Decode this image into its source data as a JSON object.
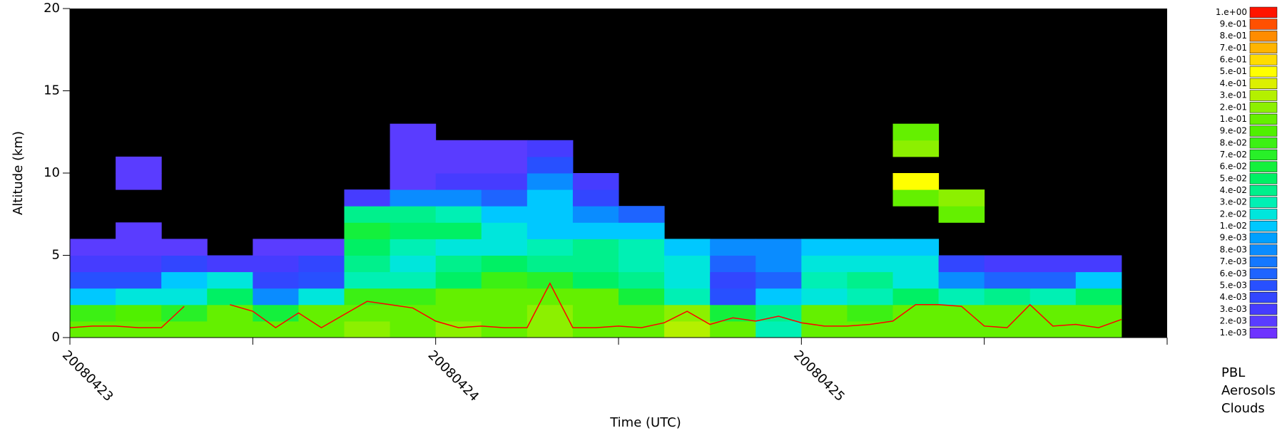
{
  "chart_data": {
    "type": "heatmap",
    "xlabel": "Time (UTC)",
    "ylabel": "Altitude (km)",
    "xlim": [
      0,
      72
    ],
    "ylim": [
      0,
      20
    ],
    "xticks": [
      {
        "value": 0,
        "label": "20080423"
      },
      {
        "value": 24,
        "label": "20080424"
      },
      {
        "value": 48,
        "label": "20080425"
      }
    ],
    "xminor_ticks": [
      12,
      36,
      60,
      72
    ],
    "yticks": [
      0,
      5,
      10,
      15,
      20
    ],
    "xbins": [
      0,
      3,
      6,
      9,
      12,
      15,
      18,
      21,
      24,
      27,
      30,
      33,
      36,
      39,
      42,
      45,
      48,
      51,
      54,
      57,
      60,
      63,
      66,
      69,
      72
    ],
    "ybins": [
      0,
      1,
      2,
      3,
      4,
      5,
      6,
      7,
      8,
      9,
      10,
      11,
      12,
      13
    ],
    "z": [
      [
        0.15,
        0.15,
        0.15,
        0.15,
        0.12,
        0.15,
        0.2,
        0.15,
        0.2,
        0.15,
        0.2,
        0.15,
        0.15,
        0.3,
        0.1,
        0.03,
        0.15,
        0.15,
        0.1,
        0.15,
        0.15,
        0.15,
        0.15,
        null
      ],
      [
        0.08,
        0.09,
        0.07,
        0.1,
        0.06,
        0.1,
        0.15,
        0.1,
        0.15,
        0.15,
        0.2,
        0.15,
        0.1,
        0.2,
        0.06,
        0.04,
        0.1,
        0.08,
        0.15,
        0.1,
        0.1,
        0.1,
        0.1,
        null
      ],
      [
        0.01,
        0.02,
        0.02,
        0.05,
        0.008,
        0.02,
        0.08,
        0.08,
        0.1,
        0.1,
        0.15,
        0.1,
        0.06,
        0.03,
        0.005,
        0.01,
        0.02,
        0.03,
        0.05,
        0.03,
        0.04,
        0.03,
        0.05,
        null
      ],
      [
        0.005,
        0.005,
        0.01,
        0.02,
        0.004,
        0.005,
        0.03,
        0.03,
        0.05,
        0.08,
        0.07,
        0.05,
        0.04,
        0.02,
        0.004,
        0.006,
        0.03,
        0.04,
        0.02,
        0.008,
        0.006,
        0.006,
        0.01,
        null
      ],
      [
        0.003,
        0.003,
        0.004,
        0.003,
        0.003,
        0.004,
        0.04,
        0.02,
        0.04,
        0.05,
        0.04,
        0.04,
        0.03,
        0.02,
        0.006,
        0.008,
        0.02,
        0.02,
        0.02,
        0.004,
        0.003,
        0.003,
        0.003,
        null
      ],
      [
        0.002,
        0.002,
        0.002,
        null,
        0.002,
        0.002,
        0.05,
        0.03,
        0.02,
        0.02,
        0.03,
        0.04,
        0.03,
        0.01,
        0.008,
        0.008,
        0.01,
        0.015,
        0.015,
        null,
        null,
        null,
        null,
        null
      ],
      [
        null,
        0.002,
        null,
        null,
        null,
        null,
        0.06,
        0.05,
        0.05,
        0.02,
        0.015,
        0.015,
        0.01,
        null,
        null,
        null,
        null,
        null,
        null,
        null,
        null,
        null,
        null,
        null
      ],
      [
        null,
        null,
        null,
        null,
        null,
        null,
        0.04,
        0.04,
        0.03,
        0.015,
        0.01,
        0.008,
        0.006,
        null,
        null,
        null,
        null,
        null,
        null,
        0.1,
        null,
        null,
        null,
        null
      ],
      [
        null,
        null,
        null,
        null,
        null,
        null,
        0.003,
        0.008,
        0.008,
        0.006,
        0.01,
        0.004,
        null,
        null,
        null,
        null,
        null,
        null,
        0.15,
        0.2,
        null,
        null,
        null,
        null
      ],
      [
        null,
        0.002,
        null,
        null,
        null,
        null,
        null,
        0.002,
        0.003,
        0.003,
        0.008,
        0.003,
        null,
        null,
        null,
        null,
        null,
        null,
        0.5,
        null,
        null,
        null,
        null,
        null
      ],
      [
        null,
        0.002,
        null,
        null,
        null,
        null,
        null,
        0.002,
        0.002,
        0.002,
        0.005,
        null,
        null,
        null,
        null,
        null,
        null,
        null,
        null,
        null,
        null,
        null,
        null,
        null
      ],
      [
        null,
        null,
        null,
        null,
        null,
        null,
        null,
        0.002,
        0.002,
        0.002,
        0.003,
        null,
        null,
        null,
        null,
        null,
        null,
        null,
        0.2,
        null,
        null,
        null,
        null,
        null
      ],
      [
        null,
        null,
        null,
        null,
        null,
        null,
        null,
        0.002,
        null,
        null,
        null,
        null,
        null,
        null,
        null,
        null,
        null,
        null,
        0.15,
        null,
        null,
        null,
        null,
        null
      ]
    ],
    "pbl": {
      "name": "PBL",
      "color": "#ff0000",
      "x": [
        0,
        1.5,
        3,
        4.5,
        6,
        7.5,
        9,
        10.5,
        12,
        13.5,
        15,
        16.5,
        18,
        19.5,
        21,
        22.5,
        24,
        25.5,
        27,
        28.5,
        30,
        31.5,
        33,
        34.5,
        36,
        37.5,
        39,
        40.5,
        42,
        43.5,
        45,
        46.5,
        48,
        49.5,
        51,
        52.5,
        54,
        55.5,
        57,
        58.5,
        60,
        61.5,
        63,
        64.5,
        66,
        67.5,
        69,
        70.5,
        72
      ],
      "values": [
        0.6,
        0.7,
        0.7,
        0.6,
        0.6,
        1.9,
        null,
        2.0,
        1.6,
        0.6,
        1.5,
        0.6,
        1.4,
        2.2,
        2.0,
        1.8,
        1.0,
        0.6,
        0.7,
        0.6,
        0.6,
        3.3,
        0.6,
        0.6,
        0.7,
        0.6,
        0.9,
        1.6,
        0.8,
        1.2,
        1.0,
        1.3,
        0.9,
        0.7,
        0.7,
        0.8,
        1.0,
        2.0,
        2.0,
        1.9,
        0.7,
        0.6,
        2.0,
        0.7,
        0.8,
        0.6,
        1.1,
        null,
        null
      ]
    },
    "legend": [
      {
        "name": "PBL",
        "color": "#ff2020"
      },
      {
        "name": "Aerosols",
        "color": "#20e020"
      },
      {
        "name": "Clouds",
        "color": "#20c8ff"
      }
    ],
    "colorbar": {
      "levels": [
        {
          "value": 0.001,
          "label": "1.e-03"
        },
        {
          "value": 0.002,
          "label": "2.e-03"
        },
        {
          "value": 0.003,
          "label": "3.e-03"
        },
        {
          "value": 0.004,
          "label": "4.e-03"
        },
        {
          "value": 0.005,
          "label": "5.e-03"
        },
        {
          "value": 0.006,
          "label": "6.e-03"
        },
        {
          "value": 0.007,
          "label": "7.e-03"
        },
        {
          "value": 0.008,
          "label": "8.e-03"
        },
        {
          "value": 0.009,
          "label": "9.e-03"
        },
        {
          "value": 0.01,
          "label": "1.e-02"
        },
        {
          "value": 0.02,
          "label": "2.e-02"
        },
        {
          "value": 0.03,
          "label": "3.e-02"
        },
        {
          "value": 0.04,
          "label": "4.e-02"
        },
        {
          "value": 0.05,
          "label": "5.e-02"
        },
        {
          "value": 0.06,
          "label": "6.e-02"
        },
        {
          "value": 0.07,
          "label": "7.e-02"
        },
        {
          "value": 0.08,
          "label": "8.e-02"
        },
        {
          "value": 0.09,
          "label": "9.e-02"
        },
        {
          "value": 0.1,
          "label": "1.e-01"
        },
        {
          "value": 0.2,
          "label": "2.e-01"
        },
        {
          "value": 0.3,
          "label": "3.e-01"
        },
        {
          "value": 0.4,
          "label": "4.e-01"
        },
        {
          "value": 0.5,
          "label": "5.e-01"
        },
        {
          "value": 0.6,
          "label": "6.e-01"
        },
        {
          "value": 0.7,
          "label": "7.e-01"
        },
        {
          "value": 0.8,
          "label": "8.e-01"
        },
        {
          "value": 0.9,
          "label": "9.e-01"
        },
        {
          "value": 1,
          "label": "1.e+00"
        }
      ],
      "colors": [
        "#6e32ff",
        "#5a3cff",
        "#463cff",
        "#3246ff",
        "#2850ff",
        "#1e64ff",
        "#1478ff",
        "#0a8cff",
        "#00a0ff",
        "#00c8ff",
        "#00e6dc",
        "#00f0b4",
        "#00f08c",
        "#00f064",
        "#14f03c",
        "#28f028",
        "#3cf014",
        "#50f000",
        "#64f000",
        "#8cf000",
        "#b4f000",
        "#dcf000",
        "#ffff00",
        "#ffdc00",
        "#ffb400",
        "#ff8c00",
        "#ff5000",
        "#ff1400"
      ]
    }
  }
}
